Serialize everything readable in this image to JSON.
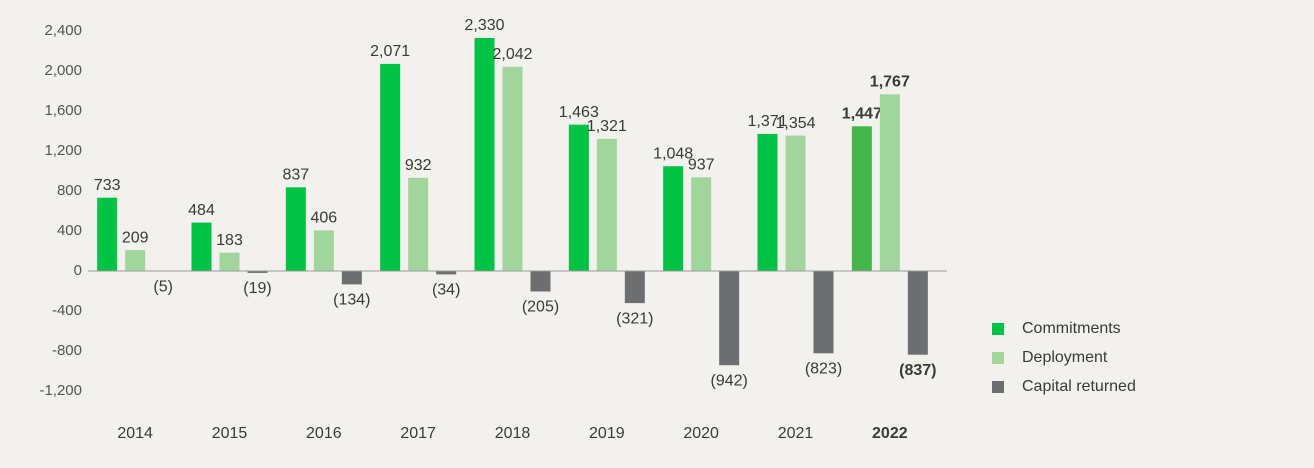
{
  "chart_data": {
    "type": "bar",
    "categories": [
      "2014",
      "2015",
      "2016",
      "2017",
      "2018",
      "2019",
      "2020",
      "2021",
      "2022"
    ],
    "bold_category": "2022",
    "highlight_color": "#45b649",
    "series": [
      {
        "name": "Commitments",
        "color": "#00c244",
        "values": [
          733,
          484,
          837,
          2071,
          2330,
          1463,
          1048,
          1371,
          1447
        ],
        "value_labels": [
          "733",
          "484",
          "837",
          "2,071",
          "2,330",
          "1,463",
          "1,048",
          "1,371",
          "1,447"
        ]
      },
      {
        "name": "Deployment",
        "color": "#a1d59c",
        "values": [
          209,
          183,
          406,
          932,
          2042,
          1321,
          937,
          1354,
          1767
        ],
        "value_labels": [
          "209",
          "183",
          "406",
          "932",
          "2,042",
          "1,321",
          "937",
          "1,354",
          "1,767"
        ]
      },
      {
        "name": "Capital returned",
        "color": "#6d6e70",
        "values": [
          -5,
          -19,
          -134,
          -34,
          -205,
          -321,
          -942,
          -823,
          -837
        ],
        "value_labels": [
          "(5)",
          "(19)",
          "(134)",
          "(34)",
          "(205)",
          "(321)",
          "(942)",
          "(823)",
          "(837)"
        ]
      }
    ],
    "ylim": [
      -1200,
      2400
    ],
    "yticks": [
      {
        "value": -1200,
        "label": "-1,200"
      },
      -800,
      -400,
      0,
      400,
      800,
      {
        "value": 1200,
        "label": "1,200"
      },
      {
        "value": 1600,
        "label": "1,600"
      },
      {
        "value": 2000,
        "label": "2,000"
      },
      {
        "value": 2400,
        "label": "2,400"
      }
    ],
    "grid": false
  }
}
